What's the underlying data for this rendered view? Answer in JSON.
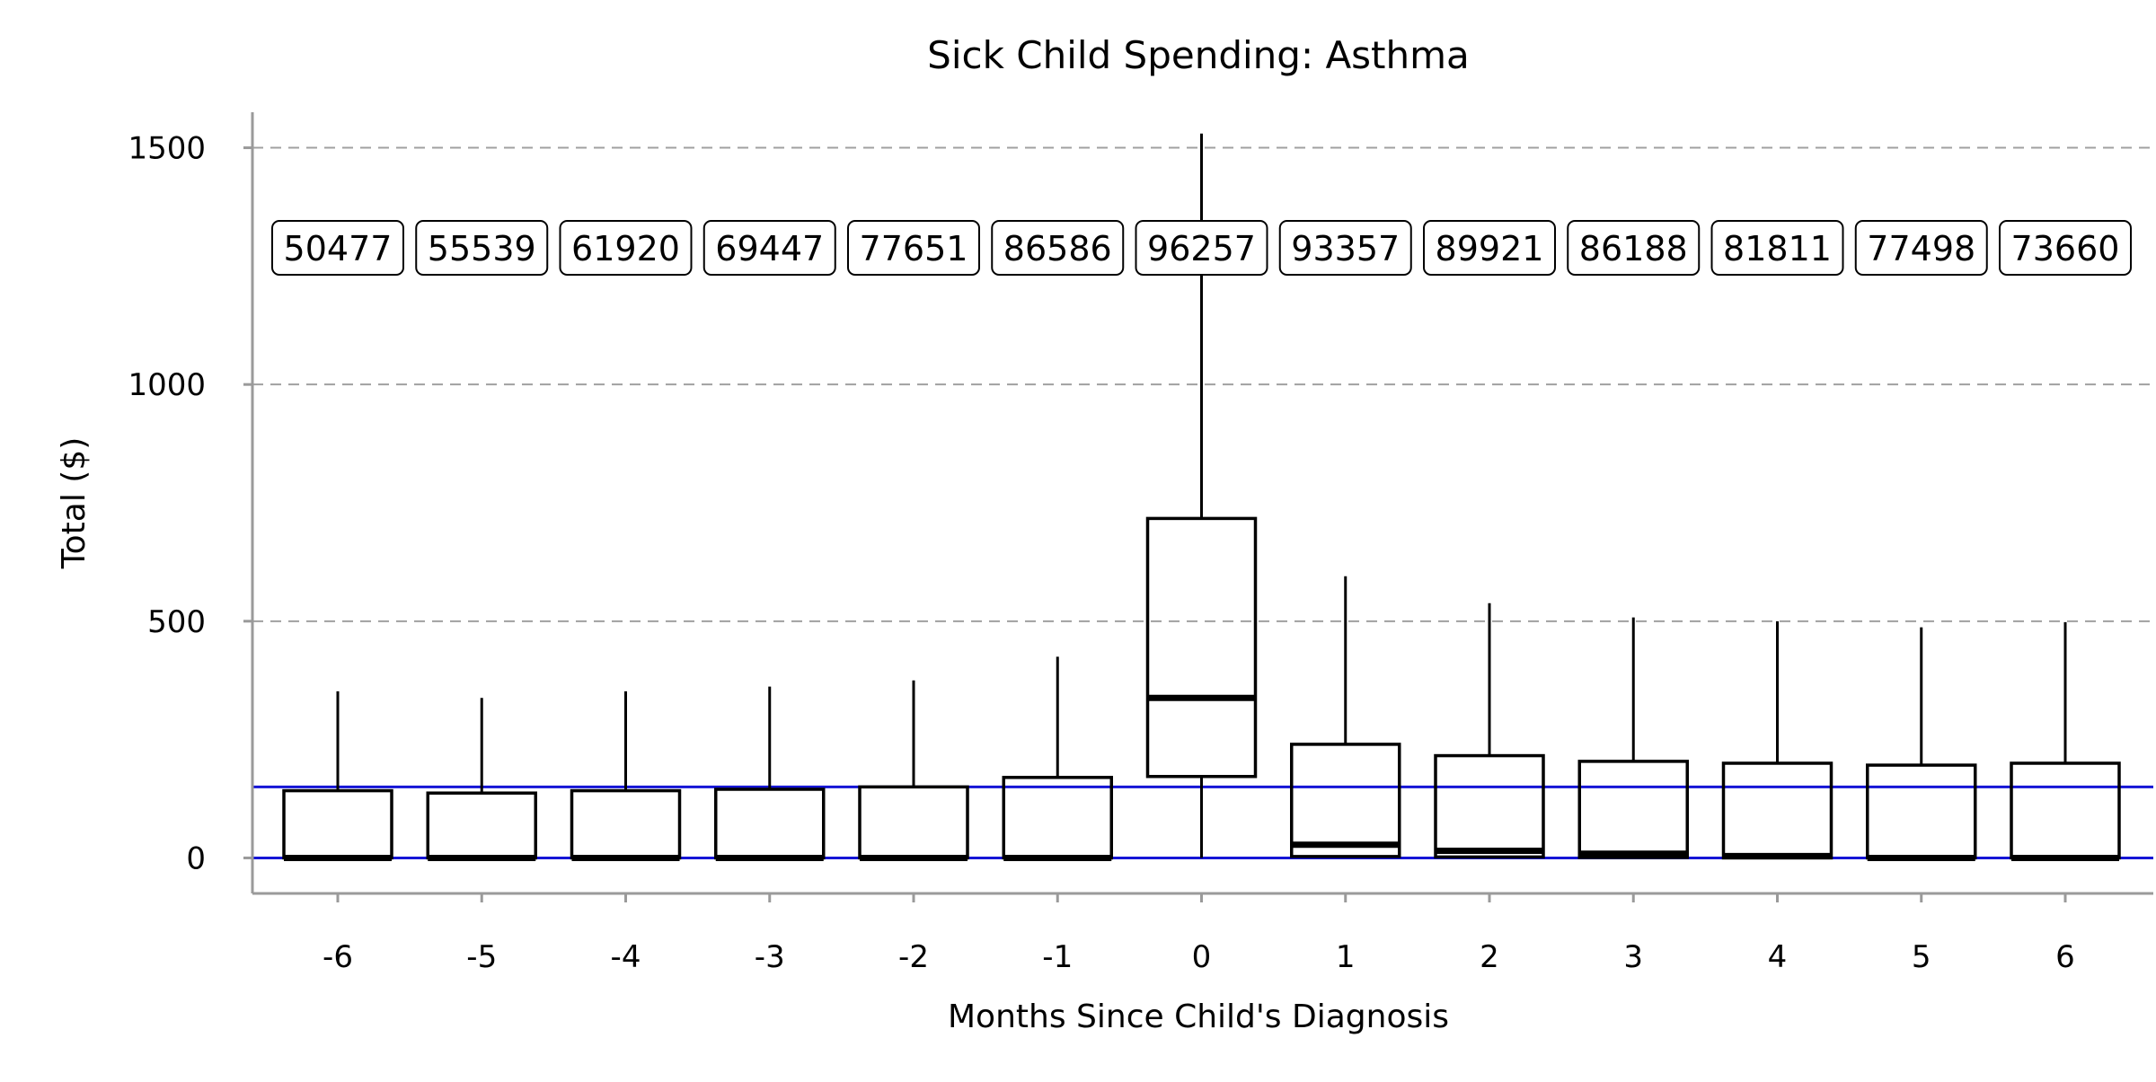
{
  "chart_data": {
    "type": "box",
    "title": "Sick Child Spending: Asthma",
    "xlabel": "Months Since Child's Diagnosis",
    "ylabel": "Total ($)",
    "ylim": [
      -75,
      1575
    ],
    "yticks": [
      0,
      500,
      1000,
      1500
    ],
    "grid": "horizontal dashed",
    "categories": [
      "-6",
      "-5",
      "-4",
      "-3",
      "-2",
      "-1",
      "0",
      "1",
      "2",
      "3",
      "4",
      "5",
      "6"
    ],
    "counts": [
      "50477",
      "55539",
      "61920",
      "69447",
      "77651",
      "86586",
      "96257",
      "93357",
      "89921",
      "86188",
      "81811",
      "77498",
      "73660"
    ],
    "boxes": [
      {
        "whisker_low": 0,
        "q1": 0,
        "median": 0,
        "q3": 142,
        "whisker_high": 352
      },
      {
        "whisker_low": 0,
        "q1": 0,
        "median": 0,
        "q3": 137,
        "whisker_high": 338
      },
      {
        "whisker_low": 0,
        "q1": 0,
        "median": 0,
        "q3": 142,
        "whisker_high": 352
      },
      {
        "whisker_low": 0,
        "q1": 0,
        "median": 0,
        "q3": 145,
        "whisker_high": 362
      },
      {
        "whisker_low": 0,
        "q1": 0,
        "median": 0,
        "q3": 150,
        "whisker_high": 375
      },
      {
        "whisker_low": 0,
        "q1": 0,
        "median": 0,
        "q3": 170,
        "whisker_high": 425
      },
      {
        "whisker_low": 0,
        "q1": 172,
        "median": 338,
        "q3": 717,
        "whisker_high": 1530
      },
      {
        "whisker_low": 0,
        "q1": 3,
        "median": 28,
        "q3": 240,
        "whisker_high": 595
      },
      {
        "whisker_low": 0,
        "q1": 2,
        "median": 15,
        "q3": 216,
        "whisker_high": 538
      },
      {
        "whisker_low": 0,
        "q1": 1,
        "median": 9,
        "q3": 204,
        "whisker_high": 508
      },
      {
        "whisker_low": 0,
        "q1": 0,
        "median": 4,
        "q3": 200,
        "whisker_high": 500
      },
      {
        "whisker_low": 0,
        "q1": 0,
        "median": 0,
        "q3": 196,
        "whisker_high": 487
      },
      {
        "whisker_low": 0,
        "q1": 0,
        "median": 0,
        "q3": 200,
        "whisker_high": 498
      }
    ],
    "reference_lines": [
      {
        "y": 0,
        "color": "#1515d6"
      },
      {
        "y": 150,
        "color": "#1515d6"
      }
    ],
    "colors": {
      "box_stroke": "#000000",
      "grid": "#a0a0a0",
      "axis": "#9a9a9a",
      "reference": "#1515d6"
    }
  }
}
